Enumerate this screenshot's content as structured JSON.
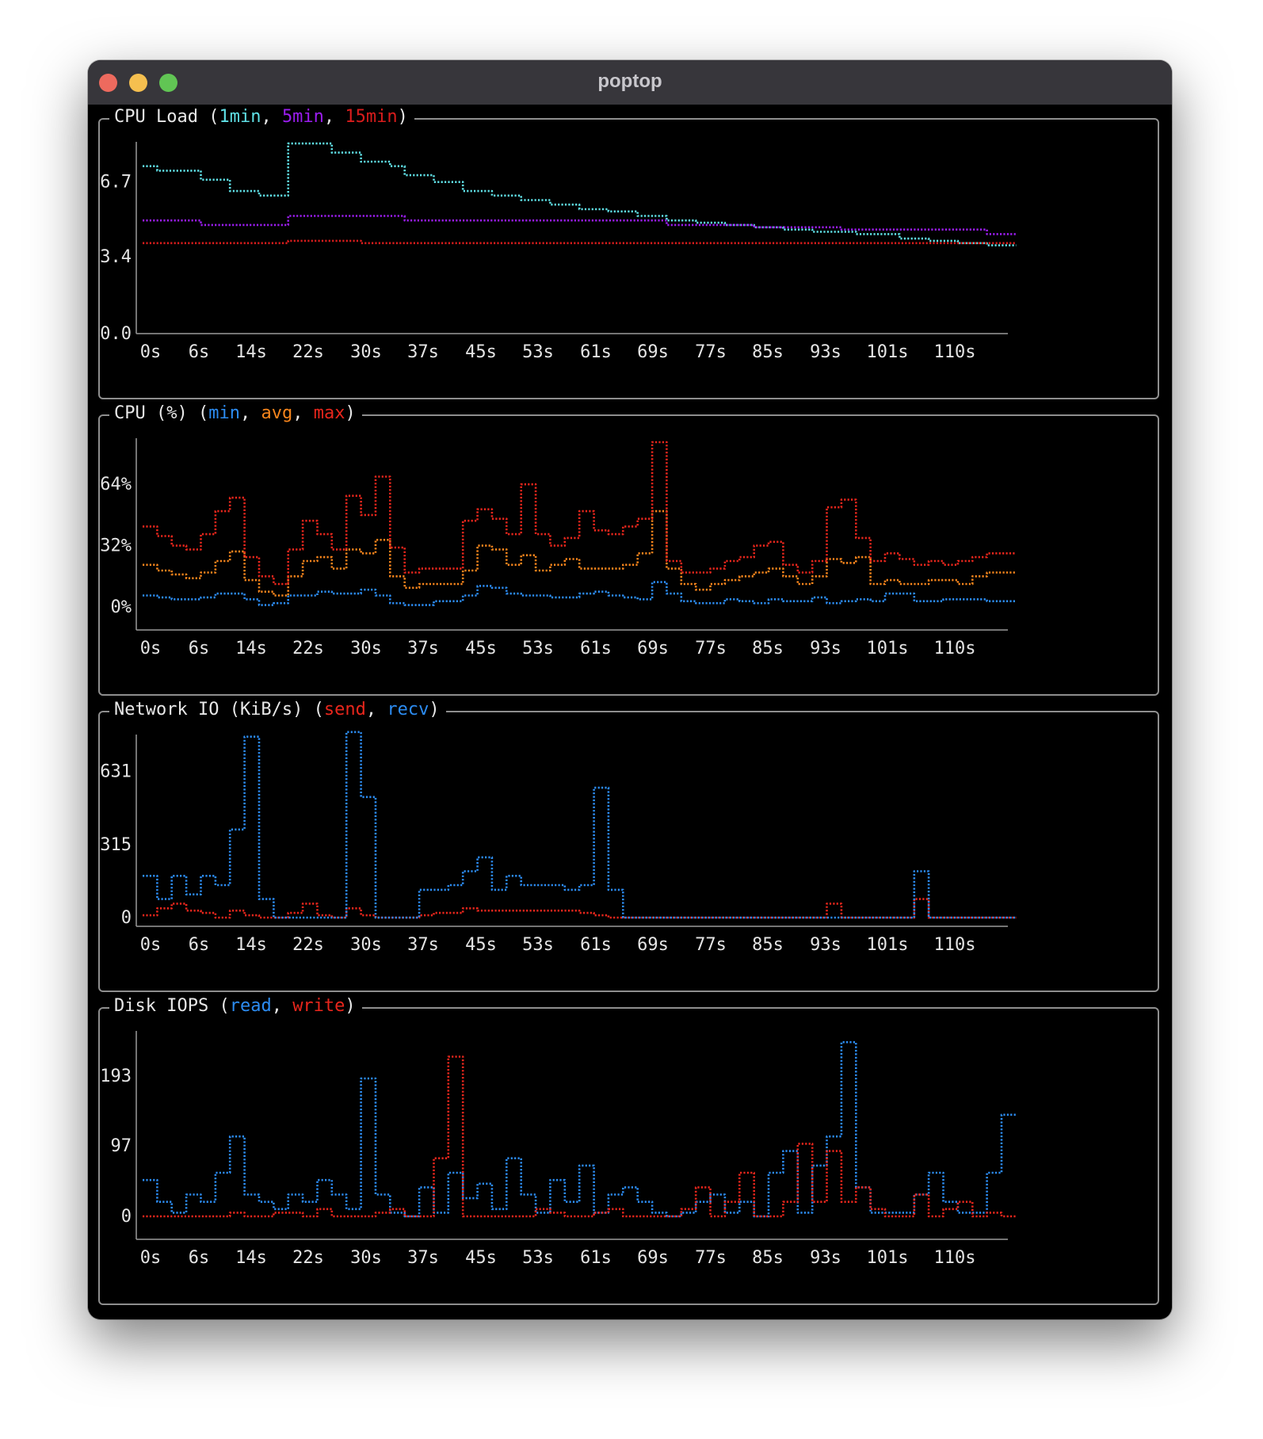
{
  "window": {
    "title": "poptop",
    "traffic_lights": [
      "#ed6a5e",
      "#f5bf4f",
      "#61c554"
    ]
  },
  "x_ticks": [
    "0s",
    "6s",
    "14s",
    "22s",
    "30s",
    "37s",
    "45s",
    "53s",
    "61s",
    "69s",
    "77s",
    "85s",
    "93s",
    "101s",
    "110s"
  ],
  "panels": [
    {
      "title_prefix": "CPU Load (",
      "title_suffix": ")",
      "legend": [
        {
          "label": "1min",
          "color": "#5fe0e6"
        },
        {
          "label": "5min",
          "color": "#9b1df0"
        },
        {
          "label": "15min",
          "color": "#d81c1c"
        }
      ]
    },
    {
      "title_prefix": "CPU (%) (",
      "title_suffix": ")",
      "legend": [
        {
          "label": "min",
          "color": "#2c8cf2"
        },
        {
          "label": "avg",
          "color": "#f7851c"
        },
        {
          "label": "max",
          "color": "#e8261c"
        }
      ]
    },
    {
      "title_prefix": "Network IO (KiB/s) (",
      "title_suffix": ")",
      "legend": [
        {
          "label": "send",
          "color": "#e8261c"
        },
        {
          "label": "recv",
          "color": "#2c8cf2"
        }
      ]
    },
    {
      "title_prefix": "Disk IOPS (",
      "title_suffix": ")",
      "legend": [
        {
          "label": "read",
          "color": "#2c8cf2"
        },
        {
          "label": "write",
          "color": "#e8261c"
        }
      ]
    }
  ],
  "chart_data": [
    {
      "type": "line",
      "title": "CPU Load (1min, 5min, 15min)",
      "x_start": 0,
      "x_end": 118,
      "x_step": 2,
      "ylim": [
        0,
        8.3
      ],
      "yticks": [
        0,
        3.4,
        6.7
      ],
      "ytick_labels": [
        "0.0",
        "3.4",
        "6.7"
      ],
      "series": [
        {
          "name": "1min",
          "color": "#5fe0e6",
          "values": [
            7.4,
            7.2,
            7.2,
            7.2,
            6.8,
            6.8,
            6.3,
            6.3,
            6.1,
            6.1,
            8.4,
            8.4,
            8.4,
            8.0,
            8.0,
            7.6,
            7.6,
            7.4,
            7.0,
            7.0,
            6.7,
            6.7,
            6.3,
            6.3,
            6.1,
            6.1,
            5.9,
            5.9,
            5.7,
            5.7,
            5.5,
            5.5,
            5.4,
            5.4,
            5.2,
            5.2,
            5.0,
            5.0,
            4.9,
            4.9,
            4.8,
            4.8,
            4.7,
            4.7,
            4.6,
            4.6,
            4.5,
            4.5,
            4.5,
            4.4,
            4.4,
            4.4,
            4.2,
            4.2,
            4.1,
            4.1,
            4.0,
            4.0,
            3.9,
            3.9
          ]
        },
        {
          "name": "5min",
          "color": "#9b1df0",
          "values": [
            5.0,
            5.0,
            5.0,
            5.0,
            4.8,
            4.8,
            4.8,
            4.8,
            4.8,
            4.8,
            5.2,
            5.2,
            5.2,
            5.2,
            5.2,
            5.2,
            5.2,
            5.2,
            5.0,
            5.0,
            5.0,
            5.0,
            5.0,
            5.0,
            5.0,
            5.0,
            5.0,
            5.0,
            5.0,
            5.0,
            5.0,
            5.0,
            5.0,
            5.0,
            5.0,
            5.0,
            4.8,
            4.8,
            4.8,
            4.8,
            4.8,
            4.8,
            4.7,
            4.7,
            4.7,
            4.7,
            4.7,
            4.7,
            4.6,
            4.6,
            4.6,
            4.6,
            4.6,
            4.6,
            4.6,
            4.6,
            4.6,
            4.6,
            4.4,
            4.4
          ]
        },
        {
          "name": "15min",
          "color": "#d81c1c",
          "values": [
            4.0,
            4.0,
            4.0,
            4.0,
            4.0,
            4.0,
            4.0,
            4.0,
            4.0,
            4.0,
            4.1,
            4.1,
            4.1,
            4.1,
            4.1,
            4.0,
            4.0,
            4.0,
            4.0,
            4.0,
            4.0,
            4.0,
            4.0,
            4.0,
            4.0,
            4.0,
            4.0,
            4.0,
            4.0,
            4.0,
            4.0,
            4.0,
            4.0,
            4.0,
            4.0,
            4.0,
            4.0,
            4.0,
            4.0,
            4.0,
            4.0,
            4.0,
            4.0,
            4.0,
            4.0,
            4.0,
            4.0,
            4.0,
            4.0,
            4.0,
            4.0,
            4.0,
            4.0,
            4.0,
            4.0,
            4.0,
            4.0,
            4.0,
            4.0,
            4.0
          ]
        }
      ]
    },
    {
      "type": "line",
      "title": "CPU (%) (min, avg, max)",
      "x_start": 0,
      "x_end": 118,
      "x_step": 2,
      "ylim": [
        0,
        86
      ],
      "yticks": [
        0,
        32,
        64
      ],
      "ytick_labels": [
        "0%",
        "32%",
        "64%"
      ],
      "series": [
        {
          "name": "min",
          "color": "#2c8cf2",
          "values": [
            6,
            5,
            4,
            4,
            5,
            7,
            7,
            4,
            1,
            2,
            6,
            6,
            8,
            7,
            7,
            9,
            6,
            2,
            1,
            1,
            3,
            3,
            6,
            11,
            10,
            7,
            6,
            6,
            5,
            5,
            7,
            8,
            6,
            5,
            4,
            13,
            7,
            3,
            2,
            2,
            4,
            3,
            2,
            4,
            3,
            3,
            5,
            2,
            3,
            4,
            3,
            7,
            7,
            3,
            3,
            4,
            4,
            4,
            3,
            3
          ]
        },
        {
          "name": "avg",
          "color": "#f7851c",
          "values": [
            22,
            19,
            17,
            15,
            18,
            24,
            29,
            14,
            8,
            6,
            16,
            24,
            26,
            20,
            30,
            28,
            35,
            16,
            10,
            12,
            12,
            12,
            19,
            32,
            30,
            22,
            27,
            19,
            22,
            25,
            20,
            20,
            20,
            22,
            28,
            50,
            20,
            12,
            9,
            12,
            14,
            16,
            18,
            20,
            16,
            12,
            16,
            25,
            23,
            26,
            12,
            14,
            12,
            12,
            14,
            14,
            12,
            16,
            18,
            18
          ]
        },
        {
          "name": "max",
          "color": "#e8261c",
          "values": [
            42,
            37,
            32,
            30,
            38,
            50,
            57,
            26,
            16,
            12,
            30,
            45,
            38,
            30,
            58,
            48,
            68,
            31,
            18,
            20,
            20,
            20,
            45,
            51,
            46,
            38,
            64,
            38,
            32,
            36,
            50,
            40,
            38,
            42,
            46,
            86,
            24,
            18,
            18,
            20,
            24,
            26,
            32,
            34,
            22,
            18,
            24,
            52,
            56,
            36,
            24,
            28,
            25,
            22,
            24,
            22,
            24,
            26,
            28,
            28
          ]
        }
      ]
    },
    {
      "type": "line",
      "title": "Network IO (KiB/s) (send, recv)",
      "x_start": 0,
      "x_end": 118,
      "x_step": 2,
      "ylim": [
        0,
        772
      ],
      "yticks": [
        0,
        315,
        631
      ],
      "ytick_labels": [
        "0",
        "315",
        "631"
      ],
      "series": [
        {
          "name": "send",
          "color": "#e8261c",
          "values": [
            10,
            40,
            60,
            30,
            20,
            0,
            30,
            10,
            0,
            0,
            20,
            60,
            10,
            0,
            40,
            10,
            0,
            0,
            0,
            10,
            20,
            20,
            40,
            30,
            30,
            30,
            30,
            30,
            30,
            30,
            20,
            10,
            0,
            0,
            0,
            0,
            0,
            0,
            0,
            0,
            0,
            0,
            0,
            0,
            0,
            0,
            0,
            60,
            0,
            0,
            0,
            0,
            0,
            80,
            0,
            0,
            0,
            0,
            0,
            0
          ]
        },
        {
          "name": "recv",
          "color": "#2c8cf2",
          "values": [
            180,
            80,
            180,
            100,
            180,
            140,
            380,
            780,
            80,
            0,
            0,
            0,
            0,
            0,
            800,
            520,
            0,
            0,
            0,
            120,
            120,
            140,
            200,
            260,
            120,
            180,
            140,
            140,
            140,
            120,
            140,
            560,
            120,
            0,
            0,
            0,
            0,
            0,
            0,
            0,
            0,
            0,
            0,
            0,
            0,
            0,
            0,
            0,
            0,
            0,
            0,
            0,
            0,
            200,
            0,
            0,
            0,
            0,
            0,
            0
          ]
        }
      ]
    },
    {
      "type": "line",
      "title": "Disk IOPS (read, write)",
      "x_start": 0,
      "x_end": 118,
      "x_step": 2,
      "ylim": [
        0,
        250
      ],
      "yticks": [
        0,
        97,
        193
      ],
      "ytick_labels": [
        "0",
        "97",
        "193"
      ],
      "series": [
        {
          "name": "read",
          "color": "#2c8cf2",
          "values": [
            50,
            20,
            5,
            30,
            20,
            60,
            110,
            30,
            20,
            10,
            30,
            20,
            50,
            30,
            10,
            190,
            30,
            5,
            0,
            40,
            5,
            60,
            25,
            45,
            10,
            80,
            30,
            5,
            50,
            20,
            70,
            5,
            30,
            40,
            20,
            5,
            0,
            5,
            20,
            30,
            5,
            20,
            0,
            60,
            90,
            5,
            70,
            110,
            240,
            40,
            5,
            5,
            5,
            30,
            60,
            20,
            5,
            5,
            60,
            140
          ]
        },
        {
          "name": "write",
          "color": "#e8261c",
          "values": [
            0,
            0,
            0,
            0,
            0,
            0,
            5,
            0,
            0,
            5,
            5,
            0,
            10,
            0,
            0,
            0,
            5,
            10,
            0,
            0,
            80,
            220,
            0,
            0,
            0,
            0,
            0,
            10,
            5,
            0,
            0,
            5,
            10,
            0,
            0,
            0,
            0,
            10,
            40,
            0,
            20,
            60,
            0,
            0,
            20,
            100,
            20,
            90,
            20,
            40,
            10,
            0,
            0,
            30,
            0,
            10,
            20,
            0,
            5,
            0
          ]
        }
      ]
    }
  ]
}
